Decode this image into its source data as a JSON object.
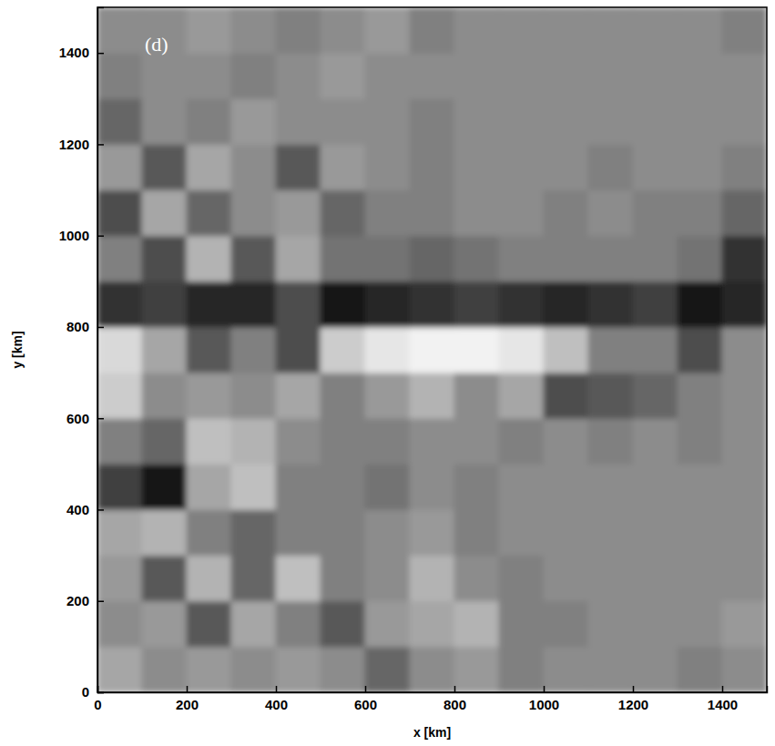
{
  "chart_data": {
    "type": "heatmap",
    "annotation": "(d)",
    "x_label": "x [km]",
    "y_label": "y [km]",
    "xlim": [
      0,
      1500
    ],
    "ylim": [
      0,
      1500
    ],
    "xticks": [
      0,
      200,
      400,
      600,
      800,
      1000,
      1200,
      1400
    ],
    "yticks": [
      0,
      200,
      400,
      600,
      800,
      1000,
      1200,
      1400
    ],
    "x_bins": [
      0,
      100,
      200,
      300,
      400,
      500,
      600,
      700,
      800,
      900,
      1000,
      1100,
      1200,
      1300,
      1400,
      1500
    ],
    "y_bins": [
      0,
      100,
      200,
      300,
      400,
      500,
      600,
      700,
      800,
      900,
      1000,
      1100,
      1200,
      1300,
      1400,
      1500
    ],
    "zlim": [
      -1,
      1
    ],
    "values": [
      [
        0.3,
        0.1,
        0.2,
        0.1,
        0.2,
        0.1,
        -0.2,
        0.1,
        0.2,
        0.0,
        0.1,
        0.1,
        0.1,
        0.0,
        0.1
      ],
      [
        0.1,
        0.2,
        -0.3,
        0.3,
        0.0,
        -0.3,
        0.2,
        0.3,
        0.4,
        0.0,
        0.0,
        0.1,
        0.1,
        0.1,
        0.2
      ],
      [
        0.2,
        -0.3,
        0.4,
        -0.2,
        0.5,
        0.0,
        0.1,
        0.4,
        0.1,
        0.0,
        0.1,
        0.1,
        0.1,
        0.1,
        0.1
      ],
      [
        0.3,
        0.4,
        0.0,
        -0.2,
        0.0,
        0.0,
        0.1,
        0.2,
        0.0,
        0.1,
        0.1,
        0.1,
        0.1,
        0.1,
        0.1
      ],
      [
        -0.5,
        -0.8,
        0.3,
        0.5,
        0.0,
        0.0,
        -0.1,
        0.1,
        0.0,
        0.1,
        0.1,
        0.1,
        0.1,
        0.1,
        0.1
      ],
      [
        0.0,
        -0.2,
        0.5,
        0.4,
        0.1,
        0.0,
        0.0,
        0.1,
        0.1,
        0.0,
        0.1,
        0.0,
        0.1,
        0.0,
        0.1
      ],
      [
        0.6,
        0.1,
        0.2,
        0.1,
        0.3,
        0.0,
        0.2,
        0.4,
        0.1,
        0.3,
        -0.4,
        -0.3,
        -0.2,
        0.0,
        0.1
      ],
      [
        0.7,
        0.3,
        -0.3,
        0.0,
        -0.4,
        0.6,
        0.8,
        0.9,
        0.9,
        0.8,
        0.5,
        0.0,
        0.0,
        -0.4,
        0.1
      ],
      [
        -0.6,
        -0.5,
        -0.7,
        -0.7,
        -0.4,
        -0.8,
        -0.7,
        -0.6,
        -0.5,
        -0.6,
        -0.7,
        -0.6,
        -0.5,
        -0.8,
        -0.7
      ],
      [
        0.0,
        -0.4,
        0.4,
        -0.3,
        0.3,
        -0.1,
        -0.1,
        -0.2,
        -0.1,
        0.0,
        0.0,
        0.0,
        0.0,
        -0.1,
        -0.6
      ],
      [
        -0.4,
        0.3,
        -0.2,
        0.1,
        0.2,
        -0.2,
        0.0,
        0.0,
        0.1,
        0.1,
        0.0,
        0.1,
        0.0,
        0.0,
        -0.2
      ],
      [
        0.2,
        -0.3,
        0.3,
        0.1,
        -0.3,
        0.2,
        0.1,
        0.0,
        0.1,
        0.1,
        0.1,
        0.0,
        0.1,
        0.1,
        0.0
      ],
      [
        -0.2,
        0.1,
        0.0,
        0.2,
        0.1,
        0.1,
        0.1,
        0.0,
        0.1,
        0.1,
        0.1,
        0.1,
        0.1,
        0.1,
        0.1
      ],
      [
        0.0,
        0.1,
        0.1,
        0.0,
        0.1,
        0.2,
        0.1,
        0.1,
        0.1,
        0.1,
        0.1,
        0.1,
        0.1,
        0.1,
        0.1
      ],
      [
        0.1,
        0.1,
        0.2,
        0.1,
        0.0,
        0.1,
        0.2,
        0.0,
        0.1,
        0.1,
        0.1,
        0.1,
        0.1,
        0.1,
        0.0
      ]
    ]
  }
}
